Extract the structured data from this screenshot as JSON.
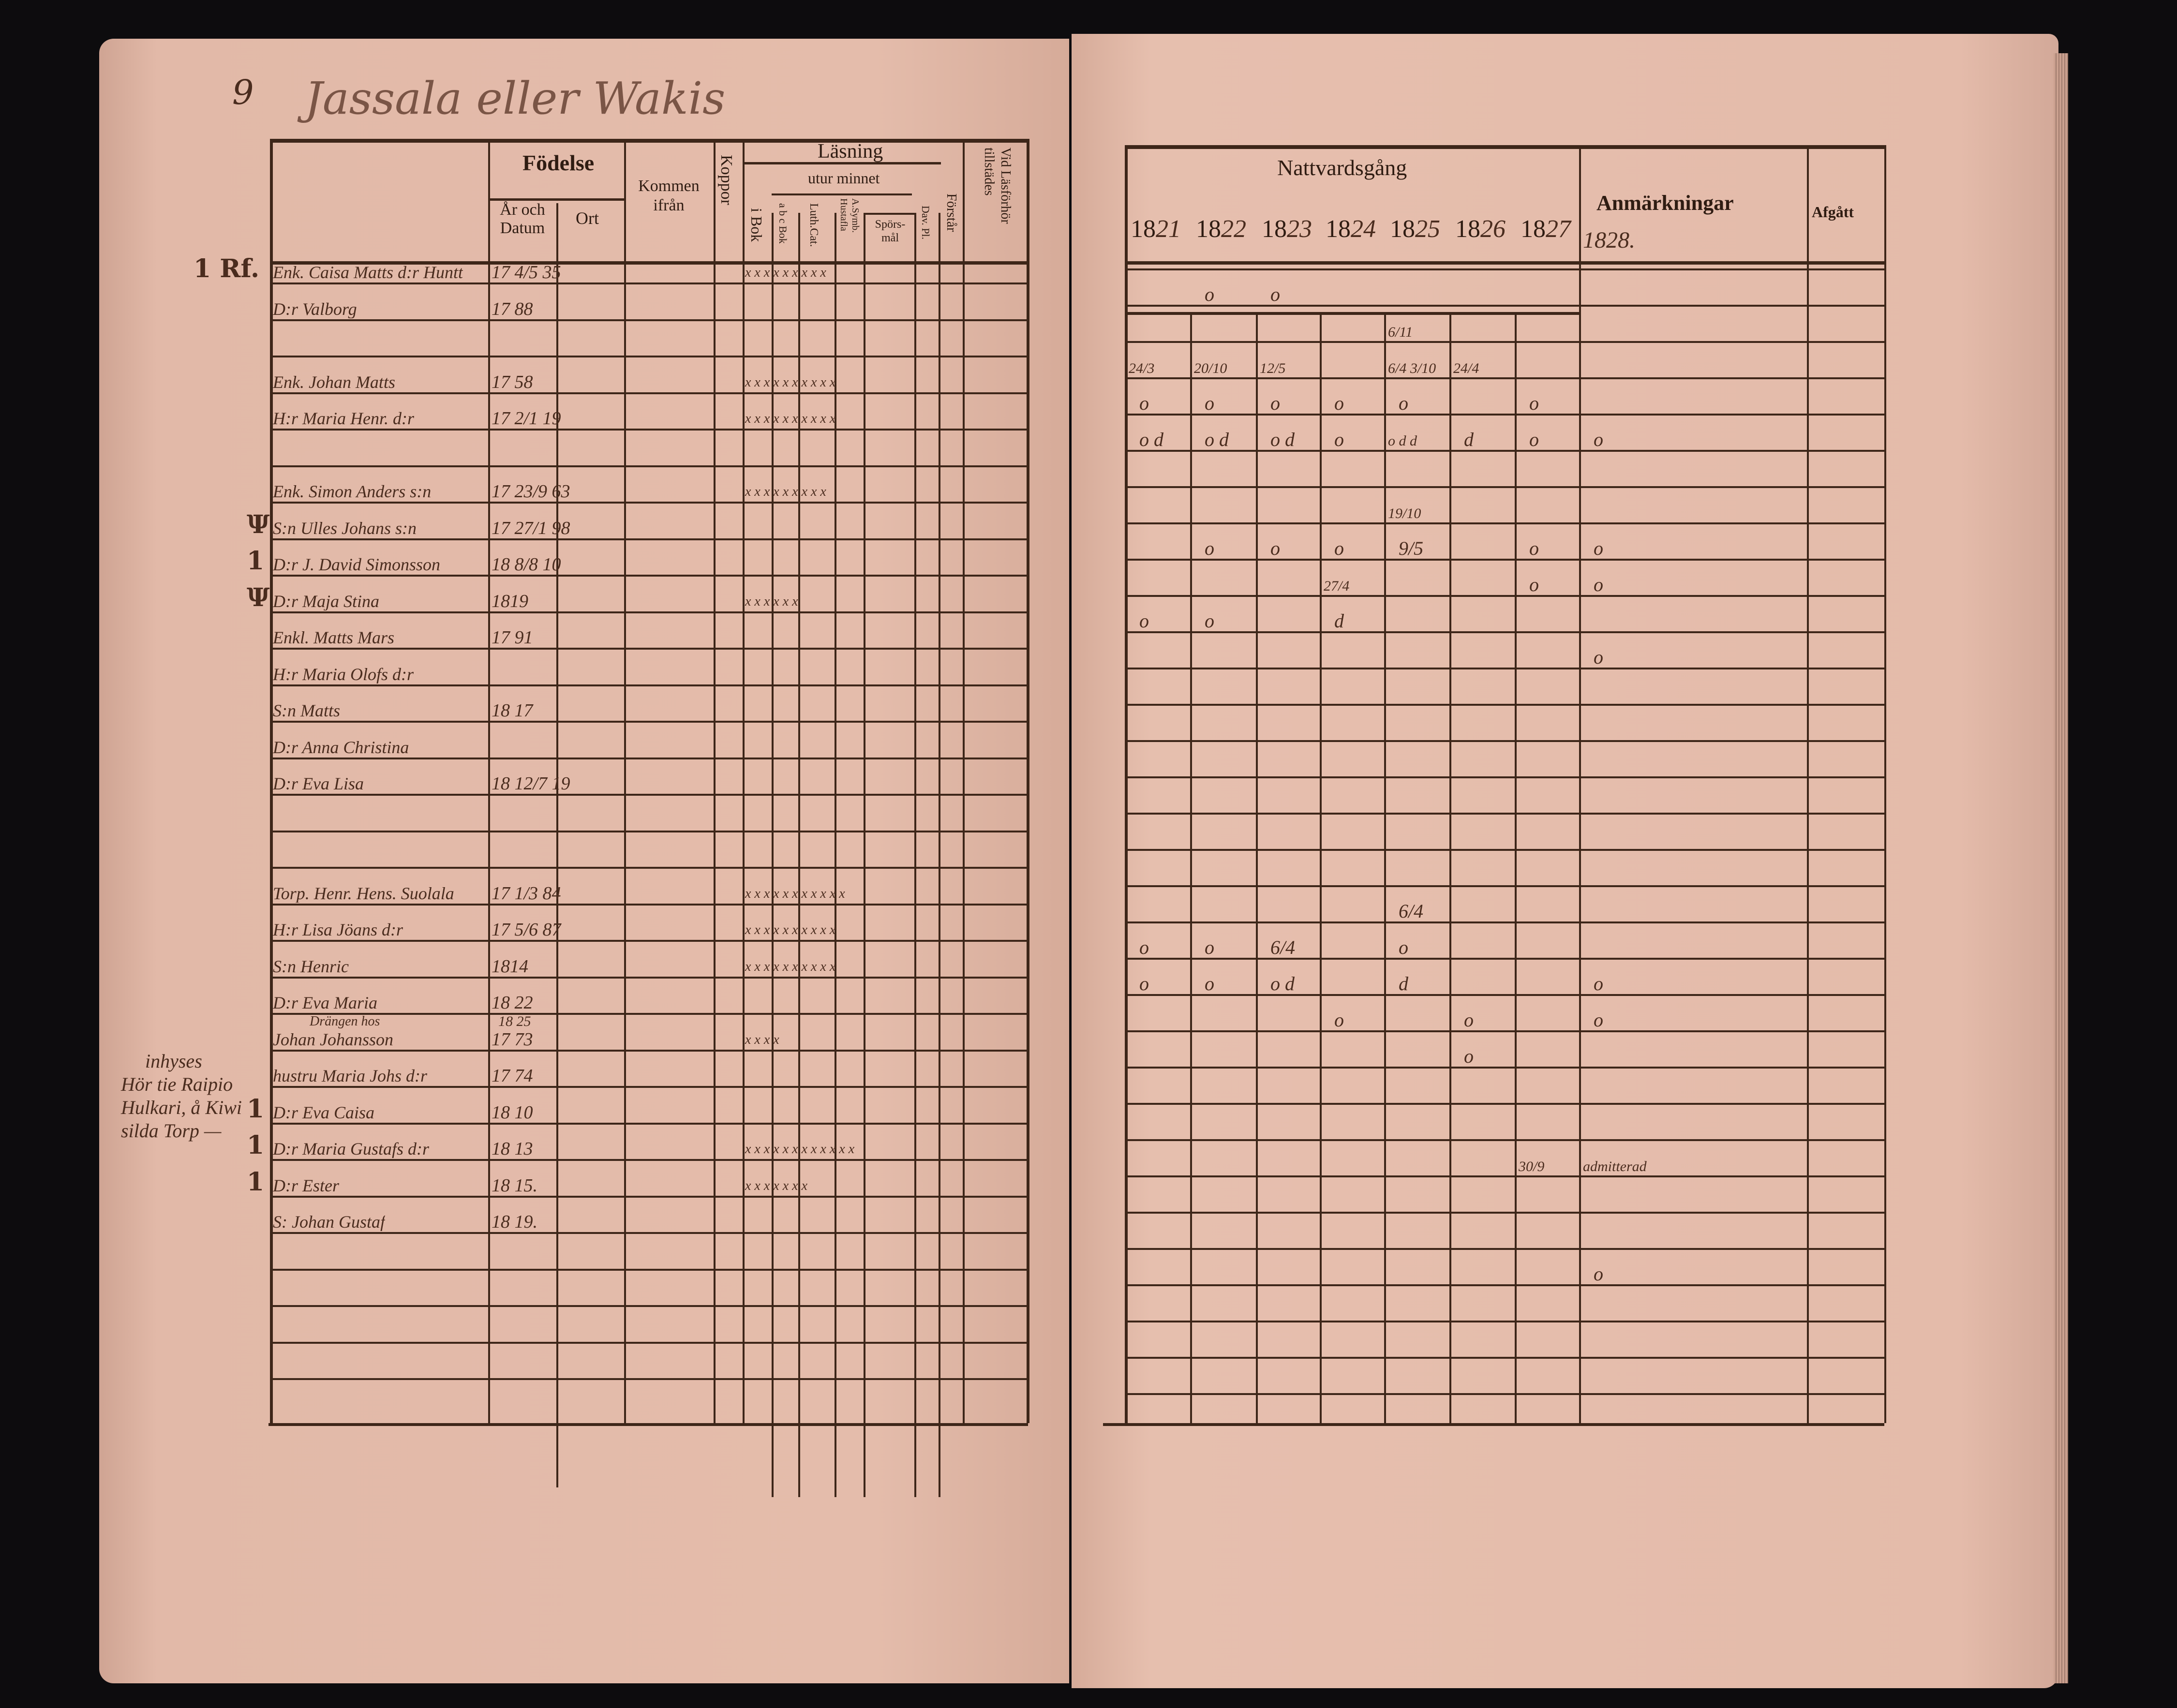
{
  "page_number": "9",
  "heading": "Jassala eller Wakis",
  "left_table": {
    "headers": {
      "birth": "Födelse",
      "birth_date": "År och Datum",
      "birth_place": "Ort",
      "came_from": "Kommen ifrån",
      "smallpox": "Koppor",
      "reading": "Läsning",
      "from_memory": "utur minnet",
      "in_book": "i Bok",
      "abc_book": "a b c Bok",
      "luth_cat": "Luth.Cat.",
      "a_symb": "A.Symb. Hustafla",
      "questions": "Spörs-mål",
      "dav_pl": "Dav. Pl.",
      "understanding": "Förstår",
      "exam_attendance": "Vid Läsförhör tillstädes"
    },
    "rows": [
      {
        "row": 0,
        "margin": "1 Rf.",
        "name": "Enk. Caisa Matts d:r Huntt",
        "birth": "17 4/5 35",
        "reading": "x x  x x  x x  x x x"
      },
      {
        "row": 1,
        "name": "D:r Valborg",
        "birth": "17 88"
      },
      {
        "row": 3,
        "name": "Enk. Johan Matts",
        "birth": "17 58",
        "reading": "x x  x x  x x x  x x x"
      },
      {
        "row": 4,
        "name": "H:r Maria Henr. d:r",
        "birth": "17 2/1 19",
        "reading": "x x  x x  x x  x x x x"
      },
      {
        "row": 6,
        "name": "Enk. Simon Anders s:n",
        "birth": "17 23/9 63",
        "reading": "x x  x x  x x  x x x"
      },
      {
        "row": 7,
        "margin": "Ψ",
        "name": "S:n Ulles Johans s:n",
        "birth": "17 27/1 98"
      },
      {
        "row": 8,
        "margin": "1",
        "name": "D:r J. David Simonsson",
        "birth": "18 8/8 10"
      },
      {
        "row": 9,
        "margin": "Ψ",
        "name": "D:r Maja Stina",
        "birth": "1819",
        "reading": "x    x    x    x   x x"
      },
      {
        "row": 10,
        "name": "Enkl. Matts Mars",
        "birth": "17 91"
      },
      {
        "row": 11,
        "name": "H:r Maria Olofs d:r"
      },
      {
        "row": 12,
        "name": "S:n Matts",
        "birth": "18 17"
      },
      {
        "row": 13,
        "name": "D:r Anna Christina"
      },
      {
        "row": 14,
        "name": "D:r Eva Lisa",
        "birth": "18 12/7 19"
      },
      {
        "row": 17,
        "name": "Torp. Henr. Hens. Suolala",
        "birth": "17 1/3 84",
        "reading": "x x x x x x x x x x x"
      },
      {
        "row": 18,
        "name": "H:r Lisa Jöans d:r",
        "birth": "17 5/6 87",
        "reading": "x x  x x x x  x x x x"
      },
      {
        "row": 19,
        "name": "S:n Henric",
        "birth": "1814",
        "reading": "x x  x x x  x x x  x x"
      },
      {
        "row": 20,
        "name": "D:r Eva Maria",
        "birth": "18 22"
      },
      {
        "row": 21,
        "name": "Johan Johansson",
        "above": "Drängen hos",
        "birth": "17 73",
        "birth_above": "18 25",
        "reading": "x x   x   x"
      },
      {
        "row": 22,
        "name": "hustru Maria Johs d:r",
        "birth": "17 74"
      },
      {
        "row": 23,
        "margin": "1",
        "name": "D:r Eva Caisa",
        "birth": "18 10"
      },
      {
        "row": 24,
        "margin": "1",
        "name": "D:r Maria Gustafs d:r",
        "birth": "18 13",
        "reading": "x x x x x  x x x x x  x  x"
      },
      {
        "row": 25,
        "margin": "1",
        "name": "D:r Ester",
        "birth": "18 15.",
        "reading": "x   x  x   x  x  x     x"
      },
      {
        "row": 26,
        "name": "S: Johan Gustaf",
        "birth": "18 19."
      }
    ]
  },
  "margin_note": [
    "inhyses",
    "Hör tie Raipio",
    "Hulkari, å Kiwi",
    "silda Torp —"
  ],
  "right_table": {
    "title": "Nattvardsgång",
    "years": [
      "1821",
      "1822",
      "1823",
      "1824",
      "1825",
      "1826",
      "1827"
    ],
    "extra_year": "1828.",
    "remarks_header": "Anmärkningar",
    "departed_header": "Afgått",
    "entries": [
      {
        "row": 1,
        "col": 1,
        "text": "o"
      },
      {
        "row": 1,
        "col": 2,
        "text": "o"
      },
      {
        "row": 2,
        "col": 4,
        "text": "6/11"
      },
      {
        "row": 3,
        "col": 0,
        "text": "24/3"
      },
      {
        "row": 3,
        "col": 1,
        "text": "20/10"
      },
      {
        "row": 3,
        "col": 2,
        "text": "12/5"
      },
      {
        "row": 3,
        "col": 4,
        "text": "6/4 3/10"
      },
      {
        "row": 3,
        "col": 5,
        "text": "24/4"
      },
      {
        "row": 4,
        "col": 0,
        "text": "o"
      },
      {
        "row": 4,
        "col": 1,
        "text": "o"
      },
      {
        "row": 4,
        "col": 2,
        "text": "o"
      },
      {
        "row": 4,
        "col": 3,
        "text": "o"
      },
      {
        "row": 4,
        "col": 4,
        "text": "o"
      },
      {
        "row": 4,
        "col": 6,
        "text": "o"
      },
      {
        "row": 5,
        "col": 0,
        "text": "o d"
      },
      {
        "row": 5,
        "col": 1,
        "text": "o d"
      },
      {
        "row": 5,
        "col": 2,
        "text": "o d"
      },
      {
        "row": 5,
        "col": 3,
        "text": "o"
      },
      {
        "row": 5,
        "col": 4,
        "text": "o d d"
      },
      {
        "row": 5,
        "col": 5,
        "text": "d"
      },
      {
        "row": 5,
        "col": 6,
        "text": "o"
      },
      {
        "row": 5,
        "col": 7,
        "text": "o"
      },
      {
        "row": 7,
        "col": 4,
        "text": "19/10"
      },
      {
        "row": 8,
        "col": 1,
        "text": "o"
      },
      {
        "row": 8,
        "col": 2,
        "text": "o"
      },
      {
        "row": 8,
        "col": 3,
        "text": "o"
      },
      {
        "row": 8,
        "col": 4,
        "text": "9/5"
      },
      {
        "row": 8,
        "col": 6,
        "text": "o"
      },
      {
        "row": 8,
        "col": 7,
        "text": "o"
      },
      {
        "row": 9,
        "col": 3,
        "text": "27/4"
      },
      {
        "row": 9,
        "col": 6,
        "text": "o"
      },
      {
        "row": 9,
        "col": 7,
        "text": "o"
      },
      {
        "row": 10,
        "col": 0,
        "text": "o"
      },
      {
        "row": 10,
        "col": 1,
        "text": "o"
      },
      {
        "row": 10,
        "col": 3,
        "text": "d"
      },
      {
        "row": 11,
        "col": 7,
        "text": "o"
      },
      {
        "row": 18,
        "col": 4,
        "text": "6/4"
      },
      {
        "row": 19,
        "col": 0,
        "text": "o"
      },
      {
        "row": 19,
        "col": 1,
        "text": "o"
      },
      {
        "row": 19,
        "col": 2,
        "text": "6/4"
      },
      {
        "row": 19,
        "col": 4,
        "text": "o"
      },
      {
        "row": 20,
        "col": 0,
        "text": "o"
      },
      {
        "row": 20,
        "col": 1,
        "text": "o"
      },
      {
        "row": 20,
        "col": 2,
        "text": "o d"
      },
      {
        "row": 20,
        "col": 4,
        "text": "d"
      },
      {
        "row": 20,
        "col": 7,
        "text": "o"
      },
      {
        "row": 21,
        "col": 3,
        "text": "o"
      },
      {
        "row": 21,
        "col": 5,
        "text": "o"
      },
      {
        "row": 21,
        "col": 7,
        "text": "o"
      },
      {
        "row": 22,
        "col": 5,
        "text": "o"
      },
      {
        "row": 25,
        "col": 6,
        "text": "30/9"
      },
      {
        "row": 25,
        "col": 7,
        "text": "admitterad"
      },
      {
        "row": 28,
        "col": 7,
        "text": "o"
      }
    ]
  },
  "colors": {
    "paper": "#e2b9a8",
    "ink": "#3a2318",
    "background": "#0d0c0e"
  }
}
